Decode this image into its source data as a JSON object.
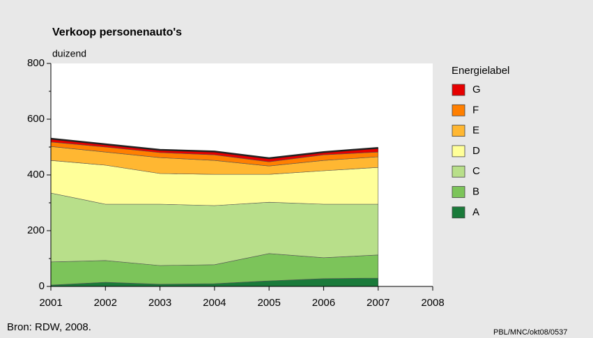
{
  "chart_data": {
    "type": "stacked_area",
    "title": "Verkoop personenauto's",
    "y_label": "duizend",
    "x": [
      2001,
      2002,
      2003,
      2004,
      2005,
      2006,
      2007
    ],
    "series": [
      {
        "name": "A",
        "color": "#1a7a3a",
        "values": [
          5,
          15,
          8,
          10,
          20,
          28,
          30
        ]
      },
      {
        "name": "B",
        "color": "#7cc45a",
        "values": [
          83,
          78,
          67,
          68,
          98,
          75,
          83
        ]
      },
      {
        "name": "C",
        "color": "#b8df8a",
        "values": [
          247,
          202,
          220,
          212,
          184,
          192,
          182
        ]
      },
      {
        "name": "D",
        "color": "#ffff99",
        "values": [
          117,
          140,
          110,
          112,
          100,
          120,
          132
        ]
      },
      {
        "name": "E",
        "color": "#ffb732",
        "values": [
          50,
          47,
          57,
          50,
          30,
          37,
          38
        ]
      },
      {
        "name": "F",
        "color": "#ff7f00",
        "values": [
          16,
          18,
          18,
          20,
          15,
          20,
          17
        ]
      },
      {
        "name": "G",
        "color": "#e60000",
        "values": [
          12,
          10,
          10,
          12,
          13,
          10,
          15
        ]
      }
    ],
    "legend_title": "Energielabel",
    "legend_position": "right",
    "xlim": [
      2001,
      2008
    ],
    "xticks": [
      2001,
      2002,
      2003,
      2004,
      2005,
      2006,
      2007,
      2008
    ],
    "ylim": [
      0,
      800
    ],
    "yticks": [
      0,
      200,
      400,
      600,
      800
    ],
    "source": "Bron: RDW, 2008.",
    "credit": "PBL/MNC/okt08/0537"
  }
}
